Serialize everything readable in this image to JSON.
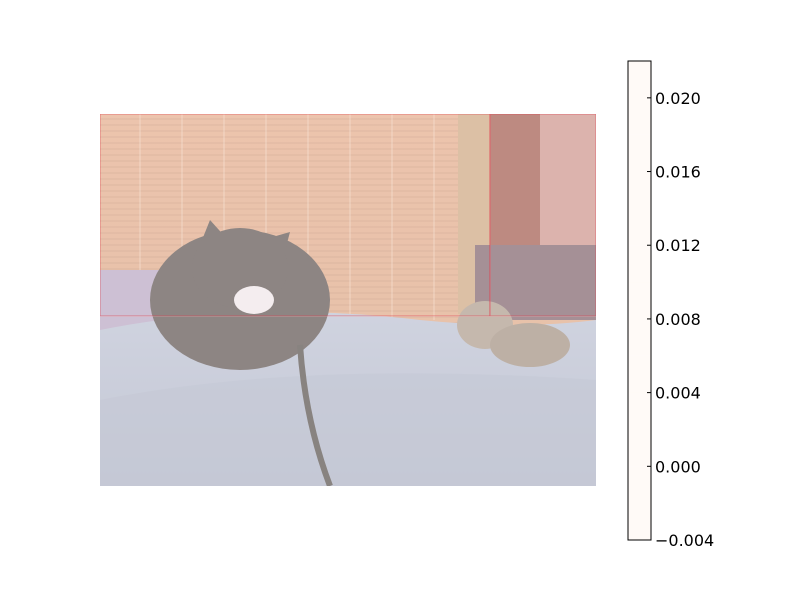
{
  "chart_data": {
    "type": "heatmap",
    "title": "",
    "xlabel": "",
    "ylabel": "",
    "background": "photo of a black-and-white cat and a tabby kitten lying on a blue patterned duvet in front of a bamboo blind",
    "heatmap_grid": {
      "rows": 3,
      "cols": 2,
      "values": [
        [
          0.021,
          0.022
        ],
        [
          0.002,
          0.006
        ],
        [
          0.001,
          0.003
        ]
      ]
    },
    "colorbar": {
      "min": -0.004,
      "max": 0.022,
      "levels": [
        -0.004,
        -0.002,
        0.0,
        0.002,
        0.004,
        0.006,
        0.008,
        0.01,
        0.012,
        0.014,
        0.016,
        0.018,
        0.02,
        0.022
      ],
      "ticks": [
        -0.004,
        0.0,
        0.004,
        0.008,
        0.012,
        0.016,
        0.02
      ],
      "tick_labels": [
        "−0.004",
        "0.000",
        "0.004",
        "0.008",
        "0.012",
        "0.016",
        "0.020"
      ],
      "colormap": "Reds",
      "alpha": 0.5
    }
  }
}
